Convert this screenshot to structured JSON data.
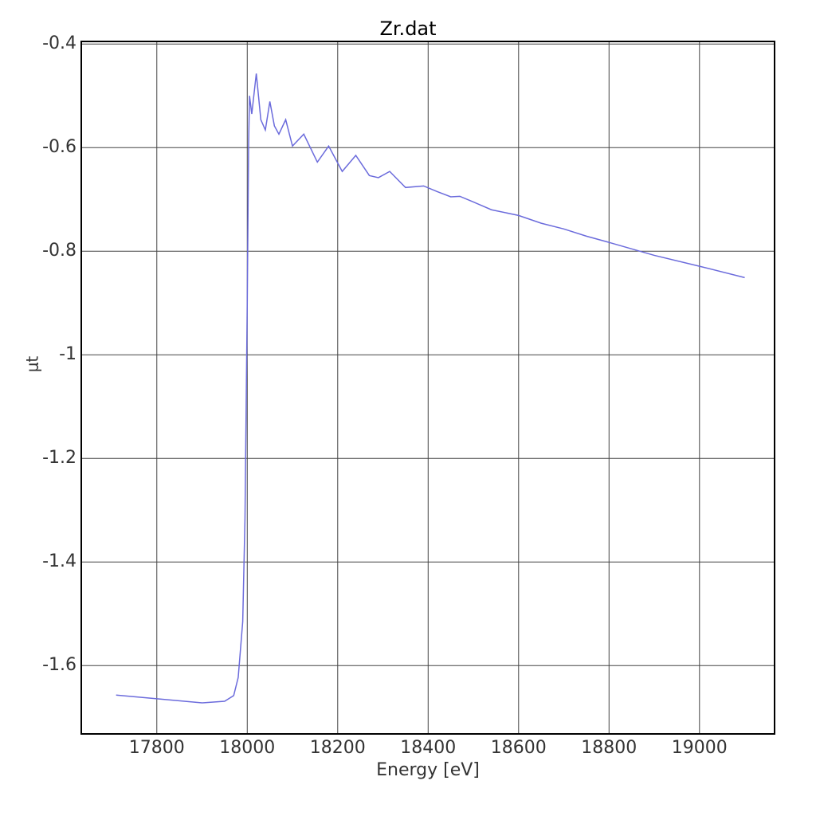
{
  "chart_data": {
    "type": "line",
    "title": "Zr.dat",
    "x_label": "Energy [eV]",
    "y_label": "μt",
    "x": [
      17710,
      17900,
      17950,
      17970,
      17980,
      17990,
      17995,
      18000,
      18003,
      18005,
      18010,
      18020,
      18030,
      18040,
      18050,
      18060,
      18070,
      18085,
      18100,
      18125,
      18155,
      18180,
      18210,
      18240,
      18270,
      18290,
      18315,
      18350,
      18390,
      18420,
      18450,
      18470,
      18500,
      18540,
      18600,
      18650,
      18700,
      18750,
      18800,
      18900,
      19000,
      19100
    ],
    "series": [
      {
        "name": "Zr.dat",
        "color": "#6b6bdc",
        "values": [
          -1.657,
          -1.672,
          -1.669,
          -1.658,
          -1.623,
          -1.515,
          -1.315,
          -0.9,
          -0.592,
          -0.5,
          -0.535,
          -0.457,
          -0.546,
          -0.566,
          -0.511,
          -0.558,
          -0.574,
          -0.546,
          -0.597,
          -0.574,
          -0.628,
          -0.597,
          -0.646,
          -0.615,
          -0.654,
          -0.658,
          -0.646,
          -0.677,
          -0.674,
          -0.685,
          -0.695,
          -0.694,
          -0.705,
          -0.72,
          -0.731,
          -0.746,
          -0.757,
          -0.771,
          -0.783,
          -0.808,
          -0.829,
          -0.851
        ]
      }
    ],
    "xlim": [
      17633,
      19166
    ],
    "ylim": [
      -1.732,
      -0.395
    ],
    "xticks": [
      17800,
      18000,
      18200,
      18400,
      18600,
      18800,
      19000
    ],
    "yticks": [
      -0.4,
      -0.6,
      -0.8,
      -1,
      -1.2,
      -1.4,
      -1.6
    ],
    "grid": true
  }
}
